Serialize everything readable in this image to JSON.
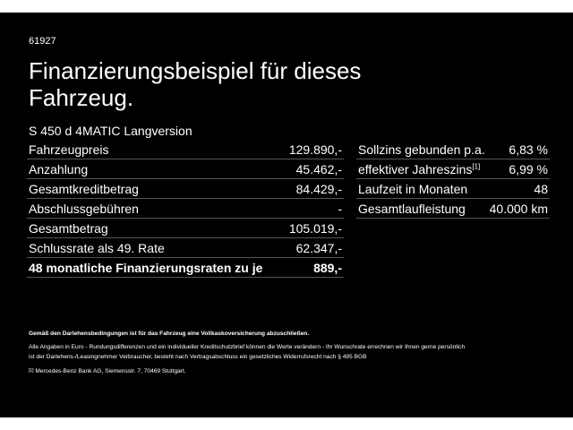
{
  "code": "61927",
  "title": "Finanzierungsbeispiel für dieses Fahrzeug.",
  "subtitle": "S 450 d 4MATIC Langversion",
  "left_table": {
    "rows": [
      [
        "Fahrzeugpreis",
        "129.890,-"
      ],
      [
        "Anzahlung",
        "45.462,-"
      ],
      [
        "Gesamtkreditbetrag",
        "84.429,-"
      ],
      [
        "Abschlussgebühren",
        "-"
      ],
      [
        "Gesamtbetrag",
        "105.019,-"
      ],
      [
        "Schlussrate als 49. Rate",
        "62.347,-"
      ],
      [
        "48 monatliche Finanzierungsraten zu je",
        "889,-"
      ]
    ]
  },
  "right_table": {
    "rows": [
      {
        "label": "Sollzins gebunden p.a.",
        "value": "6,83 %"
      },
      {
        "label": "effektiver Jahreszins",
        "note": "[1]",
        "value": "6,99 %"
      },
      {
        "label": "Laufzeit in Monaten",
        "value": "48"
      },
      {
        "label": "Gesamtlaufleistung",
        "value": "40.000 km"
      }
    ]
  },
  "notes": {
    "bold": "Gemäß den Darlehensbedingungen ist für das Fahrzeug eine Vollkaskoversicherung abzuschließen.",
    "lines": [
      "Alle Angaben in Euro - Rundungsdifferenzen und ein individueller Kreditschutzbrief können die Werte verändern - Ihr Wunschrate errechnen wir Ihnen gerne persönlich",
      "ist der Darlehens-/Leasingnehmer Verbraucher, besteht nach Vertragsabschluss ein gesetzliches Widerrufsrecht nach § 495 BGB"
    ],
    "footnote_mark": "[1]",
    "footnote": "Mercedes-Benz Bank AG, Siemensstr. 7, 70469 Stuttgart."
  }
}
